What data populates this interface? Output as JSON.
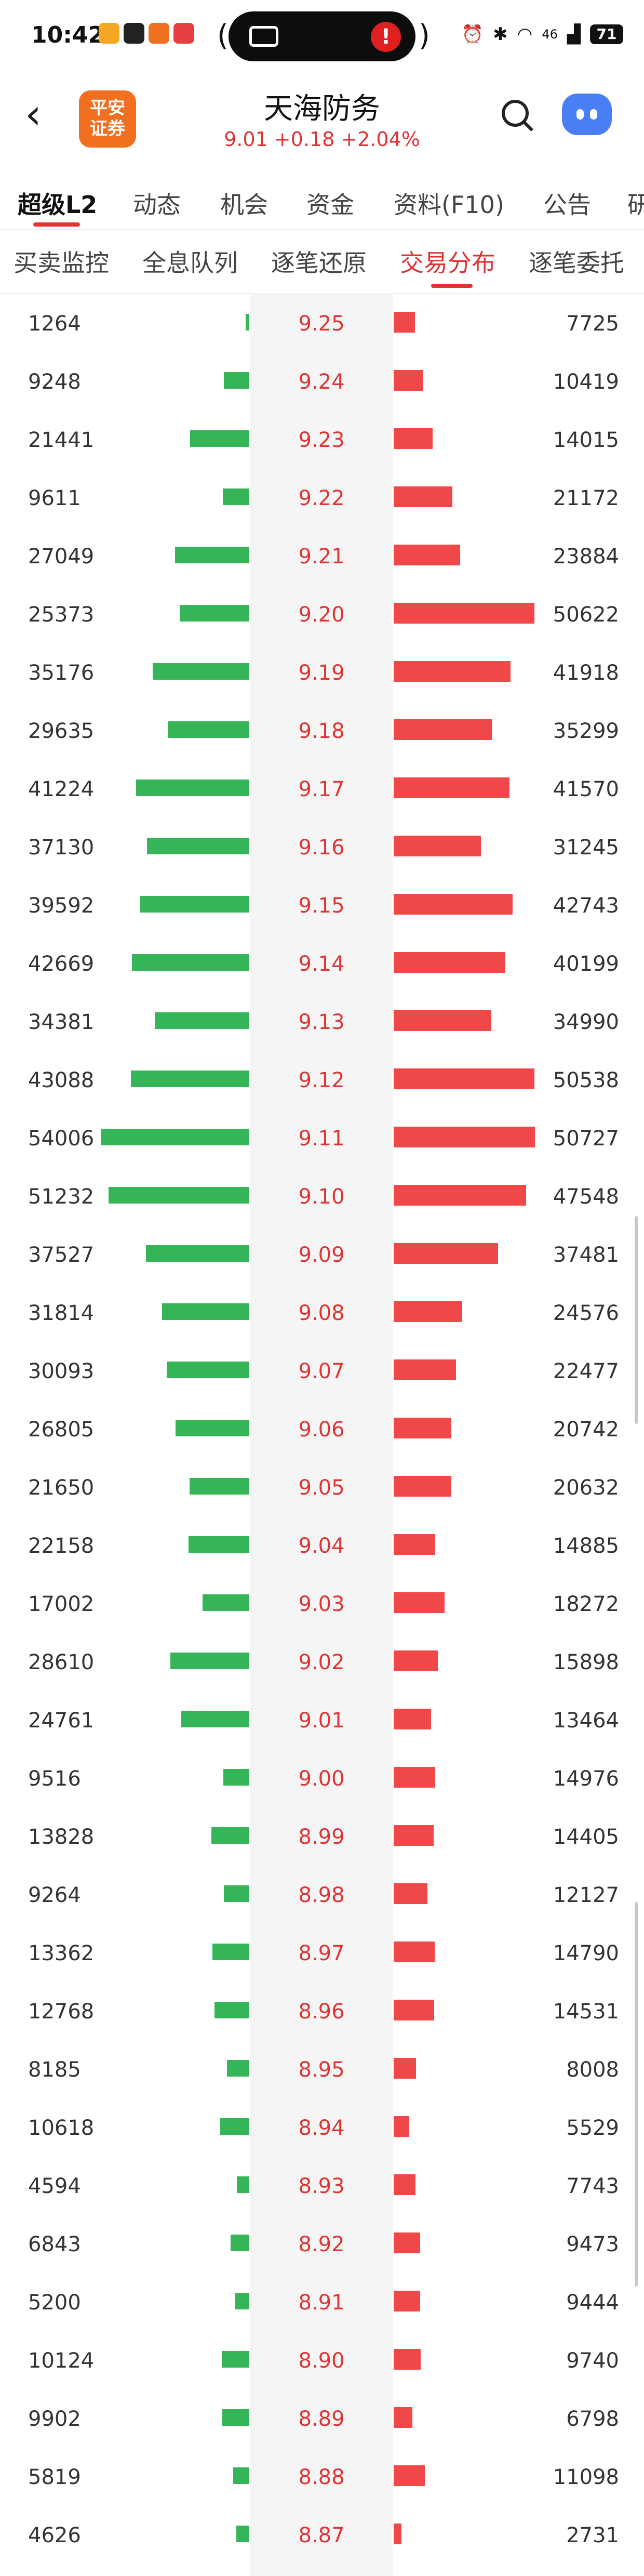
{
  "status_bar": {
    "time": "10:42",
    "battery": "71",
    "network": "46"
  },
  "header": {
    "logo_line1": "平安",
    "logo_line2": "证券",
    "stock_name": "天海防务",
    "quote": "9.01 +0.18 +2.04%"
  },
  "main_tabs": [
    "超级L2",
    "动态",
    "机会",
    "资金",
    "资料(F10)",
    "公告",
    "研"
  ],
  "sub_tabs": [
    "买卖监控",
    "全息队列",
    "逐笔还原",
    "交易分布",
    "逐笔委托"
  ],
  "colors": {
    "up": "#e03434",
    "buy_bar": "#35b558",
    "sell_bar": "#f04848"
  },
  "rows": [
    {
      "buy": "1264",
      "price": "9.25",
      "sell": "7725",
      "buy_frac": 0.023,
      "sell_frac": 0.152
    },
    {
      "buy": "9248",
      "price": "9.24",
      "sell": "10419",
      "buy_frac": 0.171,
      "sell_frac": 0.205
    },
    {
      "buy": "21441",
      "price": "9.23",
      "sell": "14015",
      "buy_frac": 0.397,
      "sell_frac": 0.276
    },
    {
      "buy": "9611",
      "price": "9.22",
      "sell": "21172",
      "buy_frac": 0.178,
      "sell_frac": 0.417
    },
    {
      "buy": "27049",
      "price": "9.21",
      "sell": "23884",
      "buy_frac": 0.501,
      "sell_frac": 0.471
    },
    {
      "buy": "25373",
      "price": "9.20",
      "sell": "50622",
      "buy_frac": 0.47,
      "sell_frac": 0.998
    },
    {
      "buy": "35176",
      "price": "9.19",
      "sell": "41918",
      "buy_frac": 0.651,
      "sell_frac": 0.826
    },
    {
      "buy": "29635",
      "price": "9.18",
      "sell": "35299",
      "buy_frac": 0.549,
      "sell_frac": 0.696
    },
    {
      "buy": "41224",
      "price": "9.17",
      "sell": "41570",
      "buy_frac": 0.763,
      "sell_frac": 0.819
    },
    {
      "buy": "37130",
      "price": "9.16",
      "sell": "31245",
      "buy_frac": 0.688,
      "sell_frac": 0.616
    },
    {
      "buy": "39592",
      "price": "9.15",
      "sell": "42743",
      "buy_frac": 0.733,
      "sell_frac": 0.843
    },
    {
      "buy": "42669",
      "price": "9.14",
      "sell": "40199",
      "buy_frac": 0.79,
      "sell_frac": 0.792
    },
    {
      "buy": "34381",
      "price": "9.13",
      "sell": "34990",
      "buy_frac": 0.637,
      "sell_frac": 0.69
    },
    {
      "buy": "43088",
      "price": "9.12",
      "sell": "50538",
      "buy_frac": 0.798,
      "sell_frac": 0.996
    },
    {
      "buy": "54006",
      "price": "9.11",
      "sell": "50727",
      "buy_frac": 1.0,
      "sell_frac": 1.0
    },
    {
      "buy": "51232",
      "price": "9.10",
      "sell": "47548",
      "buy_frac": 0.949,
      "sell_frac": 0.937
    },
    {
      "buy": "37527",
      "price": "9.09",
      "sell": "37481",
      "buy_frac": 0.695,
      "sell_frac": 0.739
    },
    {
      "buy": "31814",
      "price": "9.08",
      "sell": "24576",
      "buy_frac": 0.589,
      "sell_frac": 0.484
    },
    {
      "buy": "30093",
      "price": "9.07",
      "sell": "22477",
      "buy_frac": 0.557,
      "sell_frac": 0.443
    },
    {
      "buy": "26805",
      "price": "9.06",
      "sell": "20742",
      "buy_frac": 0.496,
      "sell_frac": 0.409
    },
    {
      "buy": "21650",
      "price": "9.05",
      "sell": "20632",
      "buy_frac": 0.401,
      "sell_frac": 0.407
    },
    {
      "buy": "22158",
      "price": "9.04",
      "sell": "14885",
      "buy_frac": 0.41,
      "sell_frac": 0.293
    },
    {
      "buy": "17002",
      "price": "9.03",
      "sell": "18272",
      "buy_frac": 0.315,
      "sell_frac": 0.36
    },
    {
      "buy": "28610",
      "price": "9.02",
      "sell": "15898",
      "buy_frac": 0.53,
      "sell_frac": 0.313
    },
    {
      "buy": "24761",
      "price": "9.01",
      "sell": "13464",
      "buy_frac": 0.458,
      "sell_frac": 0.265
    },
    {
      "buy": "9516",
      "price": "9.00",
      "sell": "14976",
      "buy_frac": 0.176,
      "sell_frac": 0.295
    },
    {
      "buy": "13828",
      "price": "8.99",
      "sell": "14405",
      "buy_frac": 0.256,
      "sell_frac": 0.284
    },
    {
      "buy": "9264",
      "price": "8.98",
      "sell": "12127",
      "buy_frac": 0.172,
      "sell_frac": 0.239
    },
    {
      "buy": "13362",
      "price": "8.97",
      "sell": "14790",
      "buy_frac": 0.247,
      "sell_frac": 0.292
    },
    {
      "buy": "12768",
      "price": "8.96",
      "sell": "14531",
      "buy_frac": 0.236,
      "sell_frac": 0.286
    },
    {
      "buy": "8185",
      "price": "8.95",
      "sell": "8008",
      "buy_frac": 0.152,
      "sell_frac": 0.158
    },
    {
      "buy": "10618",
      "price": "8.94",
      "sell": "5529",
      "buy_frac": 0.197,
      "sell_frac": 0.109
    },
    {
      "buy": "4594",
      "price": "8.93",
      "sell": "7743",
      "buy_frac": 0.085,
      "sell_frac": 0.153
    },
    {
      "buy": "6843",
      "price": "8.92",
      "sell": "9473",
      "buy_frac": 0.127,
      "sell_frac": 0.187
    },
    {
      "buy": "5200",
      "price": "8.91",
      "sell": "9444",
      "buy_frac": 0.096,
      "sell_frac": 0.186
    },
    {
      "buy": "10124",
      "price": "8.90",
      "sell": "9740",
      "buy_frac": 0.187,
      "sell_frac": 0.192
    },
    {
      "buy": "9902",
      "price": "8.89",
      "sell": "6798",
      "buy_frac": 0.183,
      "sell_frac": 0.134
    },
    {
      "buy": "5819",
      "price": "8.88",
      "sell": "11098",
      "buy_frac": 0.108,
      "sell_frac": 0.219
    },
    {
      "buy": "4626",
      "price": "8.87",
      "sell": "2731",
      "buy_frac": 0.086,
      "sell_frac": 0.054
    }
  ]
}
